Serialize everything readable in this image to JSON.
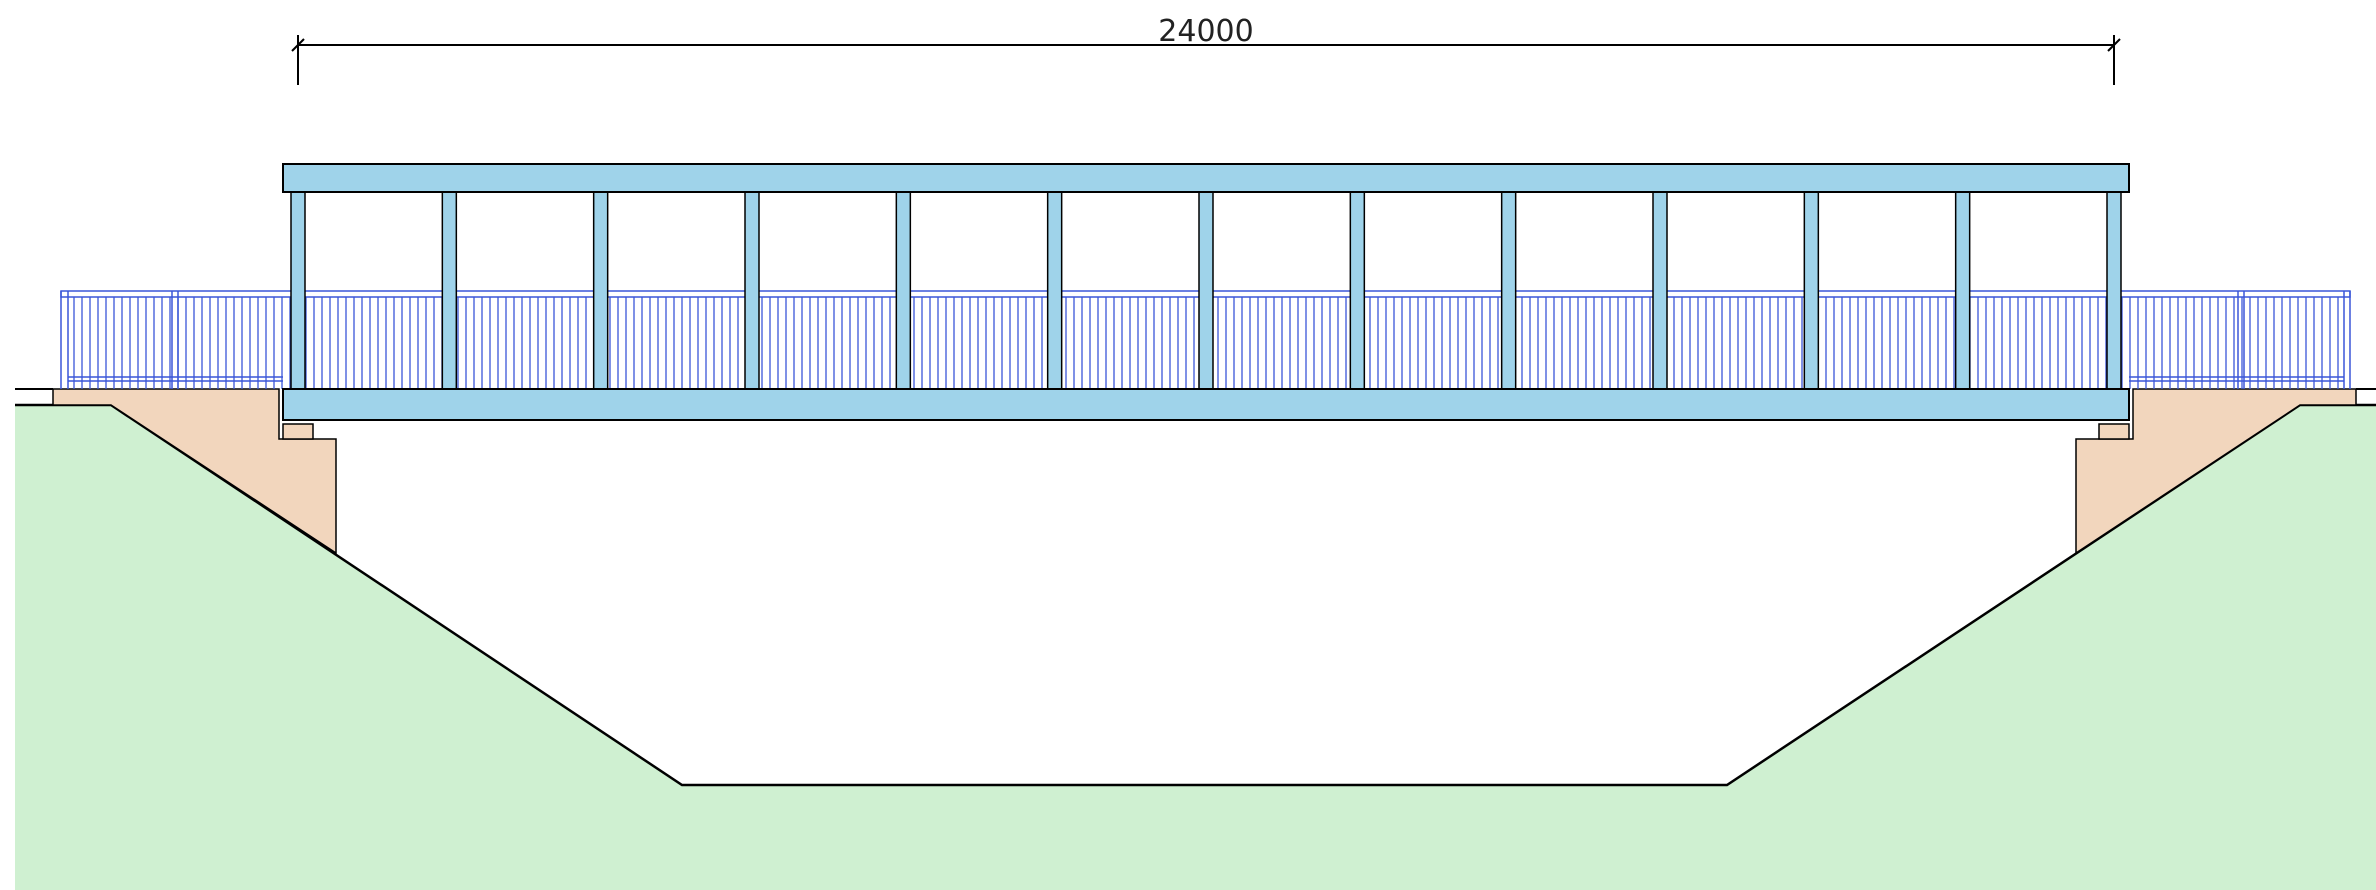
{
  "dimension": {
    "label": "24000"
  }
}
